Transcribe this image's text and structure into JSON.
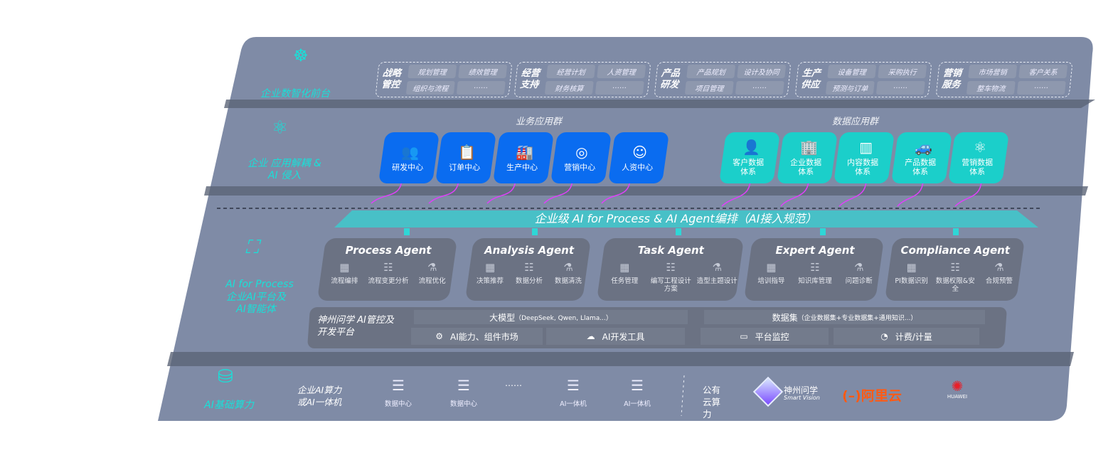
{
  "colors": {
    "panel": "#7f8ba6",
    "agent": "#6b7283",
    "business_blue": "#0a6cf0",
    "data_teal": "#1bcfca",
    "label_cyan": "#19e0d8",
    "arrow_magenta": "#e040fb"
  },
  "layer_front": {
    "label": "企业数智化前台",
    "icon": "brain-head-icon",
    "groups": [
      {
        "title": "战略管控",
        "items": [
          "规划管理",
          "绩效管理",
          "组织与流程",
          "……"
        ]
      },
      {
        "title": "经营支持",
        "items": [
          "经营计划",
          "人资管理",
          "财务核算",
          "……"
        ]
      },
      {
        "title": "产品研发",
        "items": [
          "产品规划",
          "设计及协同",
          "项目管理",
          "……"
        ]
      },
      {
        "title": "生产供应",
        "items": [
          "设备管理",
          "采购执行",
          "预测与订单",
          "……"
        ]
      },
      {
        "title": "营销服务",
        "items": [
          "市场营销",
          "客户关系",
          "整车物流",
          "……"
        ]
      }
    ]
  },
  "layer_apps": {
    "label": "企业 应用解耦 & AI 侵入",
    "icon": "molecule-icon",
    "business_title": "业务应用群",
    "business": [
      {
        "label": "研发中心",
        "icon": "users-icon"
      },
      {
        "label": "订单中心",
        "icon": "clipboard-icon"
      },
      {
        "label": "生产中心",
        "icon": "factory-icon"
      },
      {
        "label": "营销中心",
        "icon": "target-icon"
      },
      {
        "label": "人资中心",
        "icon": "person-icon"
      }
    ],
    "data_title": "数据应用群",
    "data": [
      {
        "label": "客户数据体系",
        "icon": "user-icon"
      },
      {
        "label": "企业数据体系",
        "icon": "building-icon"
      },
      {
        "label": "内容数据体系",
        "icon": "books-icon"
      },
      {
        "label": "产品数据体系",
        "icon": "car-icon"
      },
      {
        "label": "营销数据体系",
        "icon": "atom-icon"
      }
    ]
  },
  "orchestration": {
    "label": "企业级 AI for Process & AI Agent编排（AI接入规范）"
  },
  "layer_ai": {
    "label_en": "AI for Process",
    "label_cn": "企业AI平台及AI智能体",
    "icon": "face-scan-icon",
    "agents": [
      {
        "title": "Process Agent",
        "items": [
          "流程编排",
          "流程变更分析",
          "流程优化"
        ]
      },
      {
        "title": "Analysis Agent",
        "items": [
          "决策推荐",
          "数据分析",
          "数据清洗"
        ]
      },
      {
        "title": "Task Agent",
        "items": [
          "任务管理",
          "编写工程设计方案",
          "造型主题设计"
        ]
      },
      {
        "title": "Expert Agent",
        "items": [
          "培训指导",
          "知识库管理",
          "问题诊断"
        ]
      },
      {
        "title": "Compliance Agent",
        "items": [
          "PI数据识别",
          "数据权限&安全",
          "合规预警"
        ]
      }
    ],
    "platform": {
      "title": "神州问学 AI管控及开发平台",
      "model": "大模型",
      "model_note": "（DeepSeek, Qwen, Llama...）",
      "dataset": "数据集",
      "dataset_note": "（企业数据集+专业数据集+通用知识...）",
      "tools": [
        "AI能力、组件市场",
        "AI开发工具",
        "平台监控",
        "计费/计量"
      ]
    }
  },
  "layer_compute": {
    "label": "AI基础算力",
    "icon": "database-icon",
    "enterprise_label": "企业AI算力或AI一体机",
    "servers": [
      "数据中心",
      "数据中心",
      "……",
      "AI一体机",
      "AI一体机"
    ],
    "cloud_label": "公有云算力",
    "vendors": [
      {
        "name": "神州问学",
        "sub": "Smart Vision"
      },
      {
        "name": "阿里云"
      },
      {
        "name": "HUAWEI"
      }
    ]
  }
}
